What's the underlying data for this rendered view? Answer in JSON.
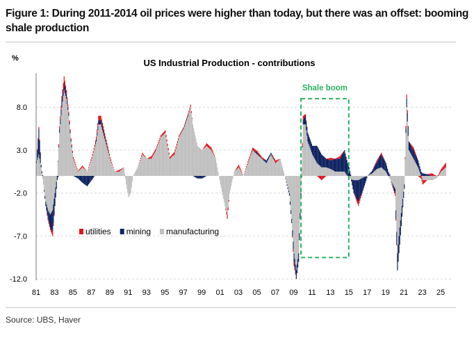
{
  "figure_title": "Figure 1: During 2011-2014 oil prices were higher than today, but there was an offset: booming shale production",
  "source": "Source: UBS, Haver",
  "colors": {
    "utilities": "#e3131b",
    "mining": "#0f2361",
    "manufacturing": "#c0c0c0",
    "shale_box": "#2db35d",
    "grid": "#d9d9d9"
  },
  "chart_data": {
    "type": "bar",
    "stacked": true,
    "title": "US Industrial Production - contributions",
    "ylabel": "%",
    "xlabel": "",
    "ylim": [
      -12,
      12
    ],
    "xlim": [
      1981,
      2026
    ],
    "yticks": [
      8.0,
      3.0,
      -2.0,
      -7.0,
      -12.0
    ],
    "ytick_labels": [
      "8.0",
      "3.0",
      "-2.0",
      "-7.0",
      "-12.0"
    ],
    "xtick_labels": [
      "81",
      "83",
      "85",
      "87",
      "89",
      "91",
      "93",
      "95",
      "97",
      "99",
      "01",
      "03",
      "05",
      "07",
      "09",
      "11",
      "13",
      "15",
      "17",
      "19",
      "21",
      "23",
      "25"
    ],
    "grid": "horizontal dashed",
    "legend": {
      "placement": "lower-left",
      "entries": [
        "utilities",
        "mining",
        "manufacturing"
      ]
    },
    "annotation": {
      "label": "Shale boom",
      "x_range": [
        2009.8,
        2015.0
      ],
      "y_range": [
        -9.5,
        9.0
      ],
      "style": "dashed box"
    },
    "columns": [
      "year",
      "manufacturing",
      "mining",
      "utilities"
    ],
    "points": [
      [
        1981.0,
        1.5,
        0.2,
        0.1
      ],
      [
        1981.25,
        2.5,
        3.0,
        0.2
      ],
      [
        1981.5,
        1.0,
        0.3,
        0
      ],
      [
        1981.75,
        -1.0,
        0,
        0
      ],
      [
        1982.0,
        -3.0,
        -0.5,
        0
      ],
      [
        1982.25,
        -4.0,
        -1.0,
        -0.2
      ],
      [
        1982.5,
        -4.5,
        -1.5,
        -0.3
      ],
      [
        1982.75,
        -4.0,
        -2.5,
        -0.5
      ],
      [
        1983.0,
        -2.0,
        -1.5,
        0
      ],
      [
        1983.25,
        0,
        -0.5,
        0
      ],
      [
        1983.5,
        5.0,
        0.5,
        0.3
      ],
      [
        1983.75,
        8.0,
        0.8,
        0.5
      ],
      [
        1984.0,
        10.0,
        0.8,
        0.8
      ],
      [
        1984.25,
        9.0,
        0.5,
        0.5
      ],
      [
        1984.5,
        7.0,
        0.3,
        0.2
      ],
      [
        1984.75,
        4.0,
        0.2,
        0.2
      ],
      [
        1985.0,
        2.0,
        0,
        0.2
      ],
      [
        1985.5,
        0.5,
        -0.3,
        0.1
      ],
      [
        1986.0,
        1.0,
        -0.8,
        0.2
      ],
      [
        1986.5,
        0.5,
        -1.2,
        0
      ],
      [
        1987.0,
        2.0,
        -0.5,
        0.2
      ],
      [
        1987.5,
        4.0,
        0.3,
        0.3
      ],
      [
        1987.75,
        6.0,
        0.5,
        0.5
      ],
      [
        1988.0,
        6.0,
        0.5,
        0.5
      ],
      [
        1988.5,
        4.0,
        0.3,
        0.3
      ],
      [
        1989.0,
        2.0,
        0,
        0.2
      ],
      [
        1989.5,
        0.5,
        0,
        0
      ],
      [
        1990.0,
        0.5,
        0,
        0.2
      ],
      [
        1990.5,
        1.0,
        0,
        0
      ],
      [
        1990.75,
        -1.0,
        0,
        0
      ],
      [
        1991.0,
        -2.5,
        0,
        0
      ],
      [
        1991.25,
        -2.0,
        0,
        0
      ],
      [
        1991.5,
        0,
        0,
        0
      ],
      [
        1992.0,
        1.0,
        0,
        0
      ],
      [
        1992.5,
        2.5,
        0,
        0.2
      ],
      [
        1993.0,
        2.0,
        0,
        0
      ],
      [
        1993.5,
        2.0,
        0,
        0.3
      ],
      [
        1994.0,
        3.0,
        0,
        0.2
      ],
      [
        1994.5,
        4.5,
        0,
        0.2
      ],
      [
        1995.0,
        5.0,
        0,
        0.3
      ],
      [
        1995.5,
        2.0,
        0,
        0.2
      ],
      [
        1996.0,
        2.5,
        0,
        0.3
      ],
      [
        1996.5,
        4.5,
        0,
        0.2
      ],
      [
        1997.0,
        5.5,
        0.1,
        0.1
      ],
      [
        1997.5,
        7.0,
        0.1,
        0.2
      ],
      [
        1997.75,
        8.0,
        0,
        0.3
      ],
      [
        1998.0,
        6.0,
        0,
        0
      ],
      [
        1998.5,
        3.5,
        -0.3,
        0
      ],
      [
        1999.0,
        3.0,
        -0.3,
        0
      ],
      [
        1999.5,
        3.5,
        0,
        0.3
      ],
      [
        2000.0,
        3.0,
        0,
        0.3
      ],
      [
        2000.5,
        2.0,
        0,
        0
      ],
      [
        2001.0,
        -1.0,
        0,
        0
      ],
      [
        2001.5,
        -3.5,
        0,
        0
      ],
      [
        2001.75,
        -4.5,
        0,
        -0.5
      ],
      [
        2002.0,
        -2.0,
        0,
        0
      ],
      [
        2002.5,
        0.5,
        0,
        0
      ],
      [
        2003.0,
        1.0,
        0,
        0.3
      ],
      [
        2003.5,
        0,
        0,
        0
      ],
      [
        2004.0,
        1.5,
        0,
        0.2
      ],
      [
        2004.5,
        3.0,
        0,
        0.3
      ],
      [
        2005.0,
        2.5,
        0.2,
        0.2
      ],
      [
        2005.5,
        2.0,
        0,
        0.2
      ],
      [
        2006.0,
        1.5,
        0.3,
        0
      ],
      [
        2006.5,
        2.5,
        0.2,
        0
      ],
      [
        2007.0,
        1.5,
        0,
        0.3
      ],
      [
        2007.5,
        2.0,
        0,
        0
      ],
      [
        2008.0,
        0,
        0,
        0
      ],
      [
        2008.5,
        -2.0,
        -0.3,
        0
      ],
      [
        2008.75,
        -5.0,
        -0.5,
        0
      ],
      [
        2009.0,
        -9.0,
        -1.0,
        -0.5
      ],
      [
        2009.25,
        -11.0,
        -1.0,
        0
      ],
      [
        2009.5,
        -9.0,
        -1.0,
        0
      ],
      [
        2009.75,
        -2.0,
        -0.5,
        0
      ],
      [
        2010.0,
        6.0,
        0.5,
        0.5
      ],
      [
        2010.25,
        6.0,
        1.0,
        0.2
      ],
      [
        2010.5,
        4.0,
        1.0,
        0
      ],
      [
        2011.0,
        2.5,
        1.0,
        0
      ],
      [
        2011.5,
        1.5,
        2.0,
        0
      ],
      [
        2012.0,
        1.0,
        1.5,
        -0.5
      ],
      [
        2012.5,
        1.0,
        1.0,
        0
      ],
      [
        2013.0,
        0.8,
        1.0,
        0.3
      ],
      [
        2013.5,
        0.5,
        1.5,
        0
      ],
      [
        2014.0,
        0.5,
        1.5,
        0.3
      ],
      [
        2014.5,
        0.5,
        2.5,
        0
      ],
      [
        2015.0,
        -0.3,
        1.0,
        0
      ],
      [
        2015.5,
        -0.5,
        -1.5,
        0
      ],
      [
        2016.0,
        -0.5,
        -2.5,
        -0.5
      ],
      [
        2016.5,
        -0.2,
        -1.5,
        0
      ],
      [
        2017.0,
        0,
        0,
        0
      ],
      [
        2017.5,
        0.3,
        0.3,
        0
      ],
      [
        2018.0,
        0.8,
        0.8,
        0.2
      ],
      [
        2018.5,
        1.0,
        1.5,
        0.2
      ],
      [
        2019.0,
        0.5,
        1.0,
        0
      ],
      [
        2019.5,
        -0.5,
        0,
        0
      ],
      [
        2020.0,
        -1.5,
        -0.5,
        -0.3
      ],
      [
        2020.25,
        -9.0,
        -2.0,
        0
      ],
      [
        2020.5,
        -6.0,
        -2.0,
        0
      ],
      [
        2021.0,
        -1.0,
        -0.5,
        0
      ],
      [
        2021.25,
        8.0,
        1.0,
        0.5
      ],
      [
        2021.5,
        3.0,
        1.0,
        0
      ],
      [
        2022.0,
        2.0,
        1.0,
        0.3
      ],
      [
        2022.5,
        1.0,
        0.8,
        0
      ],
      [
        2023.0,
        -0.5,
        0.3,
        -0.5
      ],
      [
        2023.5,
        -0.5,
        0.2,
        0
      ],
      [
        2024.0,
        -0.5,
        0,
        0.3
      ],
      [
        2024.5,
        -0.3,
        0,
        0
      ],
      [
        2025.0,
        0.5,
        0,
        0.3
      ],
      [
        2025.5,
        1.0,
        0,
        0.5
      ]
    ]
  }
}
